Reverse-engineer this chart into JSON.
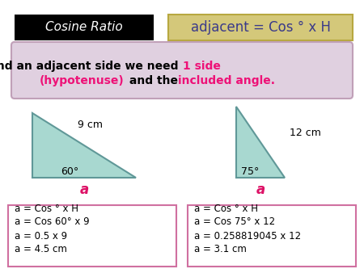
{
  "bg_color": "#ffffff",
  "title_box1_text": "Cosine Ratio",
  "title_box1_bg": "#000000",
  "title_box1_fg": "#ffffff",
  "title_box2_text": "adjacent = Cos ° x H",
  "title_box2_bg": "#d4c87a",
  "title_box2_fg": "#3a3a8a",
  "subtitle_bg": "#e0d0e0",
  "subtitle_border": "#c0a0b8",
  "tri_fill": "#a8d8d0",
  "tri_edge": "#609898",
  "tri1_hyp_label": "9 cm",
  "tri1_angle_label": "60°",
  "tri1_base_label": "a",
  "tri2_hyp_label": "12 cm",
  "tri2_angle_label": "75°",
  "tri2_base_label": "a",
  "box1_lines": [
    "a = Cos ° x H",
    "a = Cos 60° x 9",
    "a = 0.5 x 9",
    "a = 4.5 cm"
  ],
  "box2_lines": [
    "a = Cos ° x H",
    "a = Cos 75° x 12",
    "a = 0.258819045 x 12",
    "a = 3.1 cm"
  ],
  "box_border": "#d070a0",
  "box_bg": "#ffffff",
  "red_color": "#ee1177",
  "black_color": "#000000",
  "label_red": "#dd1166"
}
